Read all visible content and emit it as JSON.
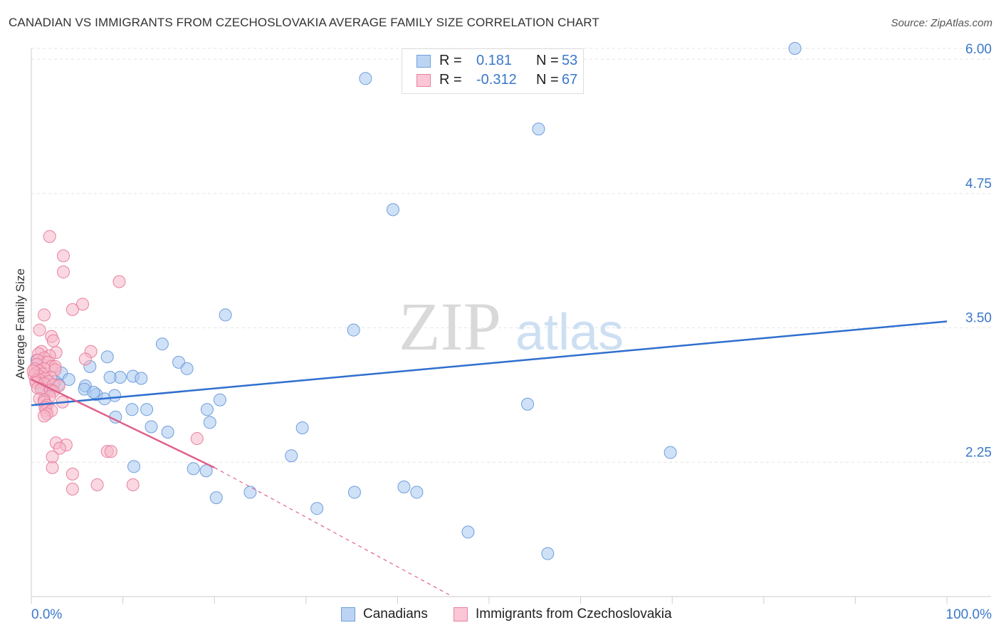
{
  "header": {
    "title": "CANADIAN VS IMMIGRANTS FROM CZECHOSLOVAKIA AVERAGE FAMILY SIZE CORRELATION CHART",
    "source": "Source: ZipAtlas.com"
  },
  "watermark": {
    "part1": "ZIP",
    "part2": "atlas"
  },
  "legend": {
    "rows": [
      {
        "r_label": "R =",
        "r_value": "0.181",
        "n_label": "N =",
        "n_value": "53"
      },
      {
        "r_label": "R =",
        "r_value": "-0.312",
        "n_label": "N =",
        "n_value": "67"
      }
    ]
  },
  "bottom_legend": {
    "canadians": "Canadians",
    "immigrants": "Immigrants from Czechoslovakia"
  },
  "colors": {
    "canadians_fill": "#a8c8f0",
    "canadians_stroke": "#6f9ddc",
    "canadians_line": "#2f6fcf",
    "immigrants_fill": "#f6b6c8",
    "immigrants_stroke": "#e8819f",
    "immigrants_line": "#e0608a",
    "axis_label": "#3a78c9",
    "grid": "#e4e4e4"
  },
  "chart_data": {
    "type": "scatter",
    "title": "CANADIAN VS IMMIGRANTS FROM CZECHOSLOVAKIA AVERAGE FAMILY SIZE CORRELATION CHART",
    "xlabel": "",
    "ylabel": "Average Family Size",
    "xlim": [
      0,
      100
    ],
    "ylim": [
      1.0,
      6.1
    ],
    "x_tick_labels": [
      "0.0%",
      "100.0%"
    ],
    "y_ticks": [
      2.25,
      3.5,
      4.75,
      6.0
    ],
    "y_tick_labels": [
      "2.25",
      "3.50",
      "4.75",
      "6.00"
    ],
    "grid": true,
    "series": [
      {
        "name": "Canadians",
        "r": 0.181,
        "n": 53,
        "points": [
          [
            83.4,
            6.1
          ],
          [
            36.5,
            5.82
          ],
          [
            55.4,
            5.35
          ],
          [
            39.5,
            4.6
          ],
          [
            21.2,
            3.62
          ],
          [
            35.2,
            3.48
          ],
          [
            14.3,
            3.35
          ],
          [
            8.3,
            3.23
          ],
          [
            16.1,
            3.18
          ],
          [
            17.0,
            3.12
          ],
          [
            6.4,
            3.14
          ],
          [
            3.3,
            3.08
          ],
          [
            11.1,
            3.05
          ],
          [
            9.7,
            3.04
          ],
          [
            8.6,
            3.04
          ],
          [
            12.0,
            3.03
          ],
          [
            4.1,
            3.02
          ],
          [
            2.6,
            3.0
          ],
          [
            1.5,
            2.99
          ],
          [
            1.7,
            2.98
          ],
          [
            3.0,
            2.97
          ],
          [
            5.9,
            2.96
          ],
          [
            2.0,
            2.94
          ],
          [
            5.8,
            2.93
          ],
          [
            7.1,
            2.88
          ],
          [
            1.4,
            2.92
          ],
          [
            9.1,
            2.87
          ],
          [
            6.8,
            2.9
          ],
          [
            8.0,
            2.84
          ],
          [
            20.6,
            2.83
          ],
          [
            19.2,
            2.74
          ],
          [
            54.2,
            2.79
          ],
          [
            11.0,
            2.74
          ],
          [
            12.6,
            2.74
          ],
          [
            9.2,
            2.67
          ],
          [
            19.5,
            2.62
          ],
          [
            13.1,
            2.58
          ],
          [
            14.9,
            2.53
          ],
          [
            29.6,
            2.57
          ],
          [
            69.8,
            2.34
          ],
          [
            28.4,
            2.31
          ],
          [
            11.2,
            2.21
          ],
          [
            17.7,
            2.19
          ],
          [
            19.1,
            2.17
          ],
          [
            20.2,
            1.92
          ],
          [
            23.9,
            1.97
          ],
          [
            35.3,
            1.97
          ],
          [
            40.7,
            2.02
          ],
          [
            42.1,
            1.97
          ],
          [
            31.2,
            1.82
          ],
          [
            47.7,
            1.6
          ],
          [
            56.4,
            1.4
          ],
          [
            0.6,
            3.2
          ]
        ],
        "trend": {
          "x": [
            0,
            100
          ],
          "y": [
            2.78,
            3.56
          ]
        }
      },
      {
        "name": "Immigrants from Czechoslovakia",
        "r": -0.312,
        "n": 67,
        "points": [
          [
            2.0,
            4.35
          ],
          [
            3.5,
            4.17
          ],
          [
            3.5,
            4.02
          ],
          [
            9.6,
            3.93
          ],
          [
            5.6,
            3.72
          ],
          [
            4.5,
            3.67
          ],
          [
            1.4,
            3.62
          ],
          [
            2.2,
            3.42
          ],
          [
            0.9,
            3.48
          ],
          [
            2.4,
            3.38
          ],
          [
            6.5,
            3.28
          ],
          [
            1.1,
            3.28
          ],
          [
            2.7,
            3.27
          ],
          [
            0.8,
            3.26
          ],
          [
            2.0,
            3.24
          ],
          [
            1.4,
            3.22
          ],
          [
            5.9,
            3.21
          ],
          [
            0.7,
            3.2
          ],
          [
            1.8,
            3.18
          ],
          [
            0.6,
            3.16
          ],
          [
            2.2,
            3.14
          ],
          [
            2.6,
            3.14
          ],
          [
            0.4,
            3.12
          ],
          [
            1.4,
            3.12
          ],
          [
            2.6,
            3.11
          ],
          [
            0.8,
            3.1
          ],
          [
            0.5,
            3.08
          ],
          [
            1.2,
            3.07
          ],
          [
            0.3,
            3.06
          ],
          [
            0.9,
            3.05
          ],
          [
            2.1,
            3.04
          ],
          [
            1.5,
            3.03
          ],
          [
            0.8,
            3.02
          ],
          [
            0.5,
            3.01
          ],
          [
            1.9,
            3.0
          ],
          [
            0.5,
            2.99
          ],
          [
            1.4,
            2.98
          ],
          [
            2.4,
            2.97
          ],
          [
            3.0,
            2.96
          ],
          [
            0.7,
            2.94
          ],
          [
            1.1,
            2.93
          ],
          [
            2.1,
            2.92
          ],
          [
            2.4,
            2.91
          ],
          [
            2.0,
            2.86
          ],
          [
            0.9,
            2.84
          ],
          [
            1.4,
            2.83
          ],
          [
            1.4,
            2.81
          ],
          [
            3.4,
            2.81
          ],
          [
            1.7,
            2.78
          ],
          [
            1.5,
            2.76
          ],
          [
            1.6,
            2.73
          ],
          [
            2.2,
            2.73
          ],
          [
            1.7,
            2.7
          ],
          [
            1.4,
            2.68
          ],
          [
            18.1,
            2.47
          ],
          [
            2.7,
            2.43
          ],
          [
            3.8,
            2.41
          ],
          [
            3.1,
            2.38
          ],
          [
            8.3,
            2.35
          ],
          [
            8.7,
            2.35
          ],
          [
            2.3,
            2.3
          ],
          [
            2.3,
            2.2
          ],
          [
            4.5,
            2.14
          ],
          [
            4.5,
            2.0
          ],
          [
            7.2,
            2.04
          ],
          [
            11.1,
            2.04
          ],
          [
            0.2,
            3.1
          ]
        ],
        "trend": {
          "x": [
            0,
            20
          ],
          "y": [
            3.02,
            2.2
          ]
        },
        "trend_extension": {
          "x": [
            20,
            46
          ],
          "y": [
            2.2,
            1.0
          ]
        }
      }
    ]
  }
}
